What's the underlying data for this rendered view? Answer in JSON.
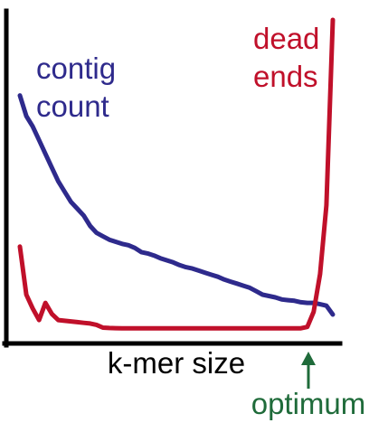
{
  "chart_data": {
    "type": "line",
    "xlabel": "k-mer size",
    "ylabel": "",
    "grid": false,
    "x": [
      1,
      2,
      3,
      4,
      5,
      6,
      7,
      8,
      9,
      10,
      11,
      12,
      13,
      14,
      15,
      16,
      17,
      18,
      19,
      20,
      21,
      22,
      23,
      24,
      25,
      26,
      27,
      28,
      29,
      30,
      31,
      32,
      33,
      34,
      35,
      36,
      37,
      38,
      39,
      40,
      41,
      42,
      43,
      44,
      45,
      46,
      47,
      48,
      49,
      50
    ],
    "series": [
      {
        "name": "contig count",
        "color": "#2e2a8c",
        "values": [
          34,
          31,
          29.5,
          27.5,
          25.5,
          23.5,
          21.5,
          20,
          18.5,
          17.5,
          16.5,
          15,
          14,
          13.5,
          13,
          12.7,
          12.4,
          12.2,
          11.8,
          11.2,
          11,
          10.7,
          10.3,
          10,
          9.7,
          9.3,
          9,
          8.8,
          8.5,
          8.2,
          7.9,
          7.6,
          7.2,
          6.9,
          6.6,
          6.3,
          6,
          5.5,
          5,
          4.8,
          4.6,
          4.3,
          4.2,
          4.1,
          3.9,
          3.8,
          3.8,
          3.6,
          3.4,
          2.1
        ]
      },
      {
        "name": "dead ends",
        "color": "#c0102a",
        "values": [
          12,
          5,
          3,
          1.3,
          3.8,
          2.2,
          1.3,
          1.2,
          1.1,
          1,
          0.9,
          0.8,
          0.6,
          0.2,
          0.15,
          0.12,
          0.1,
          0.1,
          0.1,
          0.1,
          0.1,
          0.1,
          0.1,
          0.1,
          0.1,
          0.1,
          0.1,
          0.1,
          0.1,
          0.1,
          0.1,
          0.1,
          0.1,
          0.1,
          0.1,
          0.1,
          0.1,
          0.1,
          0.1,
          0.1,
          0.1,
          0.1,
          0.1,
          0.1,
          0.1,
          0.3,
          2.5,
          8,
          18,
          45
        ]
      }
    ],
    "annotations": [
      {
        "text_lines": [
          "contig",
          "count"
        ],
        "color": "#2e2a8c"
      },
      {
        "text_lines": [
          "dead",
          "ends"
        ],
        "color": "#c0102a"
      },
      {
        "text": "optimum",
        "color": "#1f6b3a",
        "x": 45
      }
    ]
  }
}
